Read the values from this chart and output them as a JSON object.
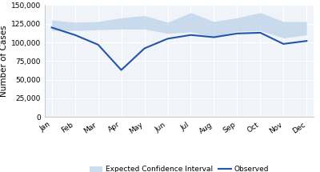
{
  "months": [
    "Jan",
    "Feb",
    "Mar",
    "Apr",
    "May",
    "Jun",
    "Jul",
    "Aug",
    "Sep",
    "Oct",
    "Nov",
    "Dec"
  ],
  "observed": [
    120000,
    110000,
    97000,
    63000,
    92000,
    105000,
    110000,
    107000,
    112000,
    113000,
    98000,
    102000
  ],
  "ci_upper": [
    130000,
    127000,
    128000,
    133000,
    136000,
    127000,
    140000,
    128000,
    133000,
    140000,
    128000,
    128000
  ],
  "ci_lower": [
    116000,
    116000,
    117000,
    118000,
    118000,
    112000,
    114000,
    108000,
    115000,
    116000,
    106000,
    110000
  ],
  "ylim": [
    0,
    150000
  ],
  "yticks": [
    0,
    25000,
    50000,
    75000,
    100000,
    125000,
    150000
  ],
  "ylabel": "Number of Cases",
  "ci_color": "#b8cfe8",
  "ci_alpha": 0.7,
  "line_color": "#2255aa",
  "line_width": 1.5,
  "legend_ci_label": "Expected Confidence Interval",
  "legend_obs_label": "Observed",
  "bg_color": "#ffffff",
  "plot_bg_color": "#f0f4f8",
  "grid_color": "#ffffff",
  "font_size_ticks": 6.5,
  "font_size_ylabel": 7.5,
  "font_size_legend": 6.5
}
